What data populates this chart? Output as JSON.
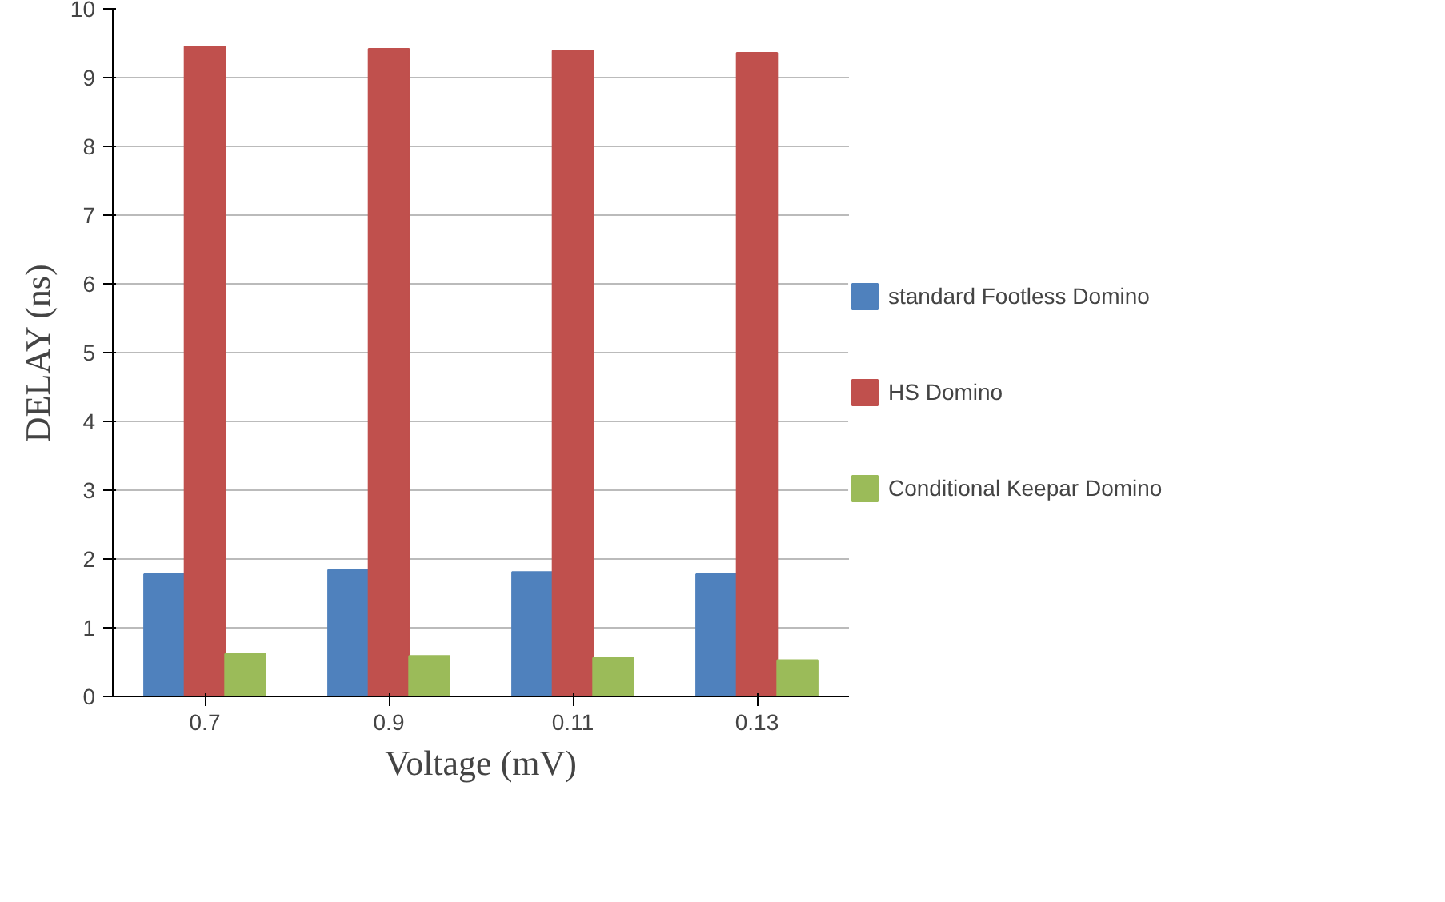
{
  "chart_data": {
    "type": "bar",
    "xlabel": "Voltage (mV)",
    "ylabel": "DELAY (ns)",
    "categories": [
      "0.7",
      "0.9",
      "0.11",
      "0.13"
    ],
    "series": [
      {
        "name": "standard Footless Domino",
        "color": "#4f81bd",
        "values": [
          1.78,
          1.84,
          1.81,
          1.78
        ]
      },
      {
        "name": "HS Domino",
        "color": "#c0504d",
        "values": [
          9.45,
          9.42,
          9.39,
          9.36
        ]
      },
      {
        "name": "Conditional Keepar Domino",
        "color": "#9bbb59",
        "values": [
          0.62,
          0.59,
          0.56,
          0.53
        ]
      }
    ],
    "ylim": [
      0,
      10
    ],
    "yticks": [
      0,
      1,
      2,
      3,
      4,
      5,
      6,
      7,
      8,
      9,
      10
    ],
    "grid": "y",
    "legend": "right"
  }
}
